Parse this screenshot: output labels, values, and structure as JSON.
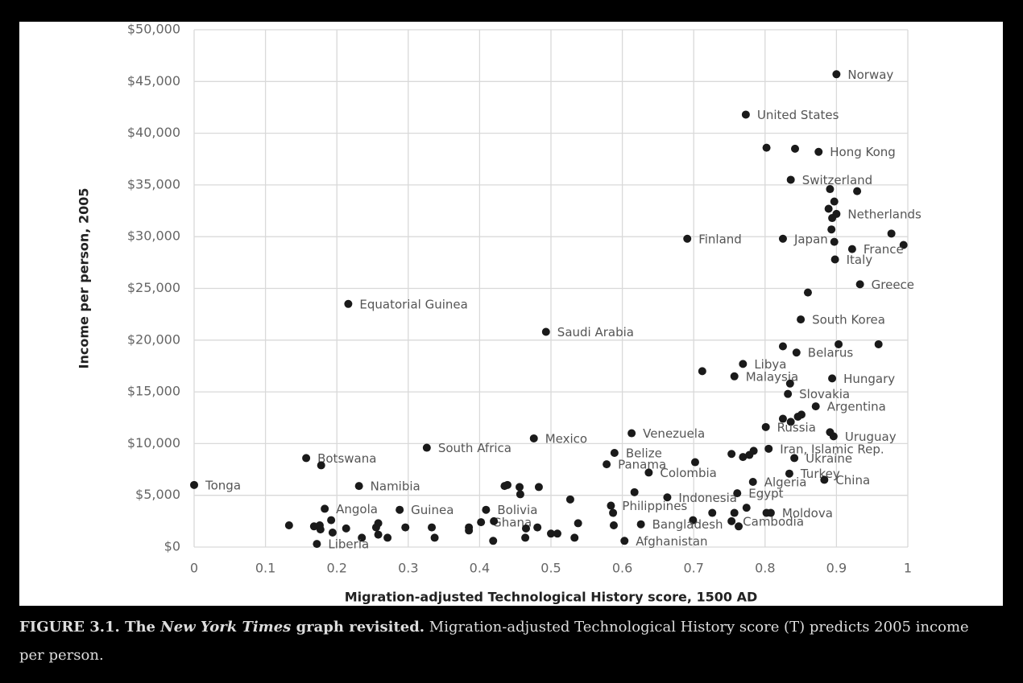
{
  "chart_data": {
    "type": "scatter",
    "x_label": "Migration-adjusted Technological History score, 1500 AD",
    "y_label": "Income per person, 2005",
    "xlim": [
      0,
      1
    ],
    "ylim": [
      0,
      50000
    ],
    "xticks": [
      0,
      0.1,
      0.2,
      0.3,
      0.4,
      0.5,
      0.6,
      0.7,
      0.8,
      0.9,
      1
    ],
    "yticks": [
      {
        "value": 0,
        "label": "$0"
      },
      {
        "value": 5000,
        "label": "$5,000"
      },
      {
        "value": 10000,
        "label": "$10,000"
      },
      {
        "value": 15000,
        "label": "$15,000"
      },
      {
        "value": 20000,
        "label": "$20,000"
      },
      {
        "value": 25000,
        "label": "$25,000"
      },
      {
        "value": 30000,
        "label": "$30,000"
      },
      {
        "value": 35000,
        "label": "$35,000"
      },
      {
        "value": 40000,
        "label": "$40,000"
      },
      {
        "value": 45000,
        "label": "$45,000"
      },
      {
        "value": 50000,
        "label": "$50,000"
      }
    ],
    "grid": true,
    "series": [
      {
        "color": "#1a1a1a",
        "x": [
          0.9,
          0.773,
          0.802,
          0.842,
          0.875,
          0.836,
          0.891,
          0.929,
          0.897,
          0.889,
          0.9,
          0.894,
          0.893,
          0.977,
          0.691,
          0.825,
          0.897,
          0.994,
          0.922,
          0.898,
          0.933,
          0.86,
          0.216,
          0.85,
          0.493,
          0.825,
          0.844,
          0.903,
          0.959,
          0.769,
          0.712,
          0.757,
          0.894,
          0.835,
          0.832,
          0.871,
          0.825,
          0.836,
          0.846,
          0.851,
          0.801,
          0.891,
          0.896,
          0.613,
          0.476,
          0.326,
          0.805,
          0.589,
          0.753,
          0.778,
          0.784,
          0.769,
          0.841,
          0.157,
          0.178,
          0.578,
          0.702,
          0.637,
          0.834,
          0.783,
          0.883,
          0,
          0.231,
          0.435,
          0.439,
          0.456,
          0.457,
          0.483,
          0.617,
          0.761,
          0.663,
          0.527,
          0.584,
          0.587,
          0.183,
          0.288,
          0.409,
          0.808,
          0.802,
          0.774,
          0.757,
          0.726,
          0.699,
          0.753,
          0.763,
          0.133,
          0.168,
          0.176,
          0.177,
          0.192,
          0.194,
          0.213,
          0.258,
          0.255,
          0.258,
          0.235,
          0.271,
          0.296,
          0.333,
          0.337,
          0.385,
          0.385,
          0.402,
          0.42,
          0.419,
          0.465,
          0.464,
          0.481,
          0.5,
          0.509,
          0.533,
          0.538,
          0.588,
          0.626,
          0.603,
          0.172
        ],
        "values": [
          45700,
          41800,
          38600,
          38500,
          38200,
          35500,
          34600,
          34400,
          33400,
          32700,
          32200,
          31800,
          30700,
          30300,
          29800,
          29800,
          29500,
          29200,
          28800,
          27800,
          25400,
          24600,
          23500,
          22000,
          20800,
          19400,
          18800,
          19600,
          19600,
          17700,
          17000,
          16500,
          16300,
          15800,
          14800,
          13600,
          12400,
          12100,
          12600,
          12800,
          11600,
          11100,
          10700,
          11000,
          10500,
          9600,
          9500,
          9100,
          9000,
          8900,
          9300,
          8700,
          8600,
          8600,
          7900,
          8000,
          8200,
          7200,
          7100,
          6300,
          6500,
          6000,
          5900,
          5900,
          6000,
          5800,
          5100,
          5800,
          5300,
          5200,
          4800,
          4600,
          4000,
          3300,
          3700,
          3600,
          3600,
          3300,
          3300,
          3800,
          3300,
          3300,
          2600,
          2500,
          2000,
          2100,
          2000,
          2100,
          1700,
          2600,
          1400,
          1800,
          2300,
          1900,
          1200,
          900,
          900,
          1900,
          1900,
          900,
          1900,
          1600,
          2400,
          2500,
          600,
          1800,
          900,
          1900,
          1300,
          1300,
          900,
          2300,
          2100,
          2200,
          600,
          300
        ],
        "point_labels": [
          "Norway",
          "United States",
          null,
          null,
          "Hong Kong",
          "Switzerland",
          null,
          null,
          null,
          null,
          "Netherlands",
          null,
          null,
          null,
          "Finland",
          "Japan",
          null,
          null,
          "France",
          "Italy",
          "Greece",
          null,
          "Equatorial Guinea",
          "South Korea",
          "Saudi Arabia",
          null,
          "Belarus",
          null,
          null,
          "Libya",
          null,
          "Malaysia",
          "Hungary",
          null,
          "Slovakia",
          "Argentina",
          null,
          null,
          null,
          null,
          "Russia",
          null,
          "Uruguay",
          "Venezuela",
          "Mexico",
          "South Africa",
          "Iran, Islamic Rep.",
          "Belize",
          null,
          null,
          null,
          null,
          "Ukraine",
          "Botswana",
          null,
          "Panama",
          null,
          "Colombia",
          "Turkey",
          "Algeria",
          "China",
          "Tonga",
          "Namibia",
          null,
          null,
          null,
          null,
          null,
          null,
          "Egypt",
          "Indonesia",
          null,
          "Philippines",
          null,
          "Angola",
          "Guinea",
          "Bolivia",
          "Moldova",
          null,
          null,
          null,
          null,
          null,
          "Cambodia",
          null,
          null,
          null,
          null,
          null,
          null,
          null,
          null,
          null,
          null,
          null,
          null,
          null,
          null,
          null,
          null,
          null,
          null,
          "Ghana",
          null,
          null,
          null,
          null,
          null,
          null,
          null,
          null,
          null,
          null,
          "Bangladesh",
          "Afghanistan",
          "Liberia"
        ]
      }
    ]
  },
  "caption": {
    "bold_prefix": "FIGURE 3.1. The ",
    "italic": "New York Times",
    "bold_suffix": " graph revisited.",
    "text": " Migration-adjusted Technological History score (T) predicts 2005 income per person."
  }
}
